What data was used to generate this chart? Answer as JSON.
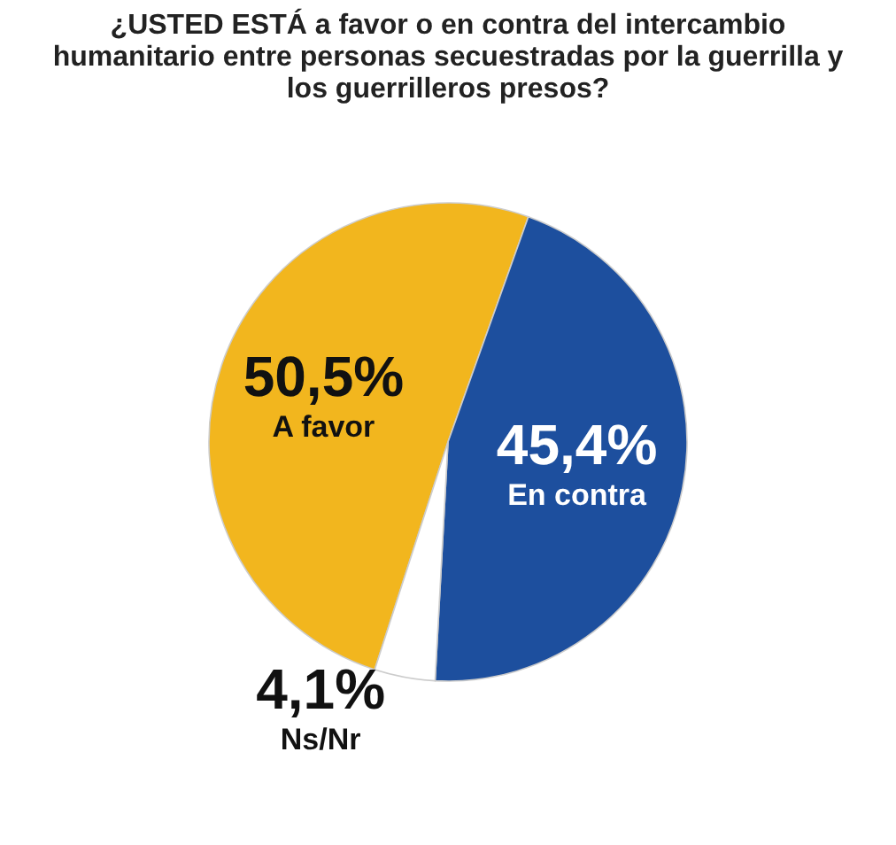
{
  "chart_data": {
    "type": "pie",
    "title": "¿USTED ESTÁ a favor o en contra del intercambio humanitario entre personas secuestradas por la guerrilla y los guerrilleros presos?",
    "categories": [
      "A favor",
      "En contra",
      "Ns/Nr"
    ],
    "values": [
      50.5,
      45.4,
      4.1
    ],
    "value_labels": [
      "50,5%",
      "45,4%",
      "4,1%"
    ],
    "colors": [
      "#f2b61e",
      "#1d4f9e",
      "#ffffff"
    ],
    "legend": false
  }
}
